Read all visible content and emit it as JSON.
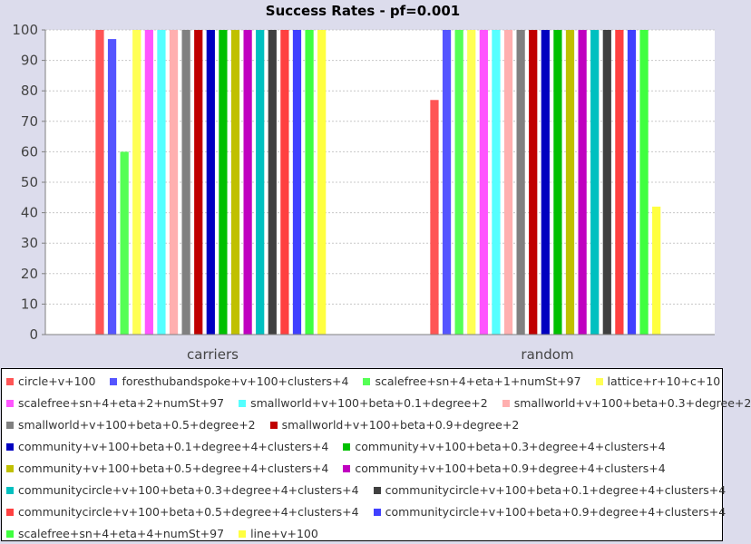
{
  "chart_data": {
    "type": "bar",
    "title": "Success Rates - pf=0.001",
    "xlabel": "",
    "ylabel": "",
    "ylim": [
      0,
      100
    ],
    "yticks": [
      0,
      10,
      20,
      30,
      40,
      50,
      60,
      70,
      80,
      90,
      100
    ],
    "grid": true,
    "legend_position": "bottom",
    "categories": [
      "carriers",
      "random"
    ],
    "series": [
      {
        "name": "circle+v+100",
        "color": "#ff5555",
        "values": [
          100,
          77
        ]
      },
      {
        "name": "foresthubandspoke+v+100+clusters+4",
        "color": "#5555ff",
        "values": [
          97,
          100
        ]
      },
      {
        "name": "scalefree+sn+4+eta+1+numSt+97",
        "color": "#55ff55",
        "values": [
          60,
          100
        ]
      },
      {
        "name": "lattice+r+10+c+10",
        "color": "#ffff55",
        "values": [
          100,
          100
        ]
      },
      {
        "name": "scalefree+sn+4+eta+2+numSt+97",
        "color": "#ff55ff",
        "values": [
          100,
          100
        ]
      },
      {
        "name": "smallworld+v+100+beta+0.1+degree+2",
        "color": "#55ffff",
        "values": [
          100,
          100
        ]
      },
      {
        "name": "smallworld+v+100+beta+0.3+degree+2",
        "color": "#ffafaf",
        "values": [
          100,
          100
        ]
      },
      {
        "name": "smallworld+v+100+beta+0.5+degree+2",
        "color": "#808080",
        "values": [
          100,
          100
        ]
      },
      {
        "name": "smallworld+v+100+beta+0.9+degree+2",
        "color": "#c00000",
        "values": [
          100,
          100
        ]
      },
      {
        "name": "community+v+100+beta+0.1+degree+4+clusters+4",
        "color": "#0000c0",
        "values": [
          100,
          100
        ]
      },
      {
        "name": "community+v+100+beta+0.3+degree+4+clusters+4",
        "color": "#00c000",
        "values": [
          100,
          100
        ]
      },
      {
        "name": "community+v+100+beta+0.5+degree+4+clusters+4",
        "color": "#c0c000",
        "values": [
          100,
          100
        ]
      },
      {
        "name": "community+v+100+beta+0.9+degree+4+clusters+4",
        "color": "#c000c0",
        "values": [
          100,
          100
        ]
      },
      {
        "name": "communitycircle+v+100+beta+0.3+degree+4+clusters+4",
        "color": "#00c0c0",
        "values": [
          100,
          100
        ]
      },
      {
        "name": "communitycircle+v+100+beta+0.1+degree+4+clusters+4",
        "color": "#404040",
        "values": [
          100,
          100
        ]
      },
      {
        "name": "communitycircle+v+100+beta+0.5+degree+4+clusters+4",
        "color": "#ff4040",
        "values": [
          100,
          100
        ]
      },
      {
        "name": "communitycircle+v+100+beta+0.9+degree+4+clusters+4",
        "color": "#4040ff",
        "values": [
          100,
          100
        ]
      },
      {
        "name": "scalefree+sn+4+eta+4+numSt+97",
        "color": "#40ff40",
        "values": [
          100,
          100
        ]
      },
      {
        "name": "line+v+100",
        "color": "#ffff40",
        "values": [
          100,
          42
        ]
      }
    ]
  }
}
